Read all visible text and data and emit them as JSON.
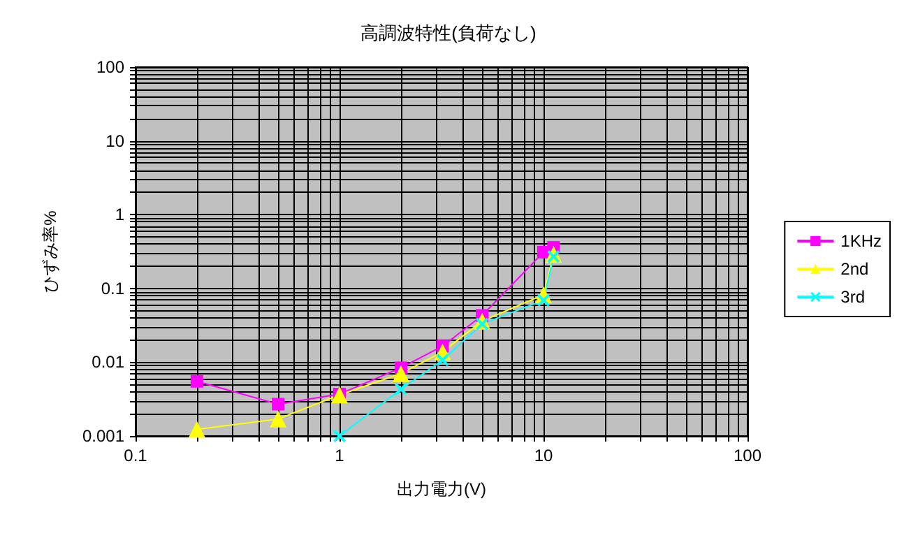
{
  "chart_data": {
    "type": "line",
    "title": "高調波特性(負荷なし)",
    "xlabel": "出力電力(V)",
    "ylabel": "ひずみ率%",
    "x": [
      0.2,
      0.5,
      1.0,
      2.0,
      3.2,
      5.0,
      10,
      11.2
    ],
    "series": [
      {
        "name": "1KHz",
        "color": "#ff00ff",
        "marker": "square",
        "values": [
          0.0055,
          0.0027,
          0.0037,
          0.0084,
          0.0165,
          0.043,
          0.31,
          0.36
        ]
      },
      {
        "name": "2nd",
        "color": "#ffff00",
        "marker": "triangle",
        "values": [
          0.00123,
          0.0017,
          0.0036,
          0.007,
          0.0138,
          0.036,
          0.082,
          0.29
        ]
      },
      {
        "name": "3rd",
        "color": "#00ffff",
        "marker": "cross",
        "values": [
          null,
          null,
          0.001,
          0.0043,
          0.0107,
          0.033,
          0.069,
          0.27
        ]
      }
    ],
    "log": "xy",
    "xlim": [
      0.1,
      100
    ],
    "ylim": [
      0.001,
      100
    ],
    "xticks": [
      0.1,
      1,
      10,
      100
    ],
    "yticks": [
      0.001,
      0.01,
      0.1,
      1,
      10,
      100
    ],
    "grid": true,
    "legend": "right"
  }
}
